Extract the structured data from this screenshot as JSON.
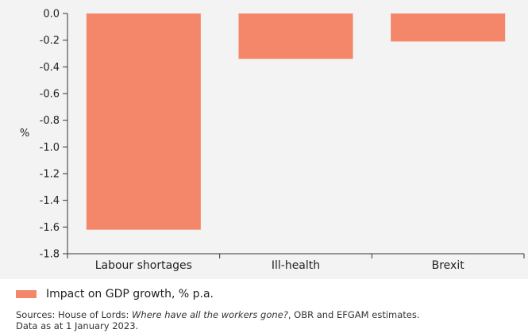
{
  "chart_data": {
    "type": "bar",
    "categories": [
      "Labour shortages",
      "Ill-health",
      "Brexit"
    ],
    "series": [
      {
        "name": "Impact on GDP growth, % p.a.",
        "values": [
          -1.62,
          -0.34,
          -0.21
        ]
      }
    ],
    "title": "",
    "xlabel": "",
    "ylabel": "%",
    "ylim": [
      -1.8,
      0.0
    ],
    "yticks": [
      "0.0",
      "-0.2",
      "-0.4",
      "-0.6",
      "-0.8",
      "-1.0",
      "-1.2",
      "-1.4",
      "-1.6",
      "-1.8"
    ],
    "grid": false,
    "legend_position": "bottom-left"
  },
  "colors": {
    "bar": "#f4876a",
    "background": "#f3f3f3"
  },
  "legend": {
    "label": "Impact on GDP growth, % p.a."
  },
  "source": {
    "prefix": "Sources: House of Lords: ",
    "italic": "Where have all the workers gone?",
    "suffix": ", OBR and EFGAM estimates.",
    "line2": "Data as at 1 January 2023."
  }
}
